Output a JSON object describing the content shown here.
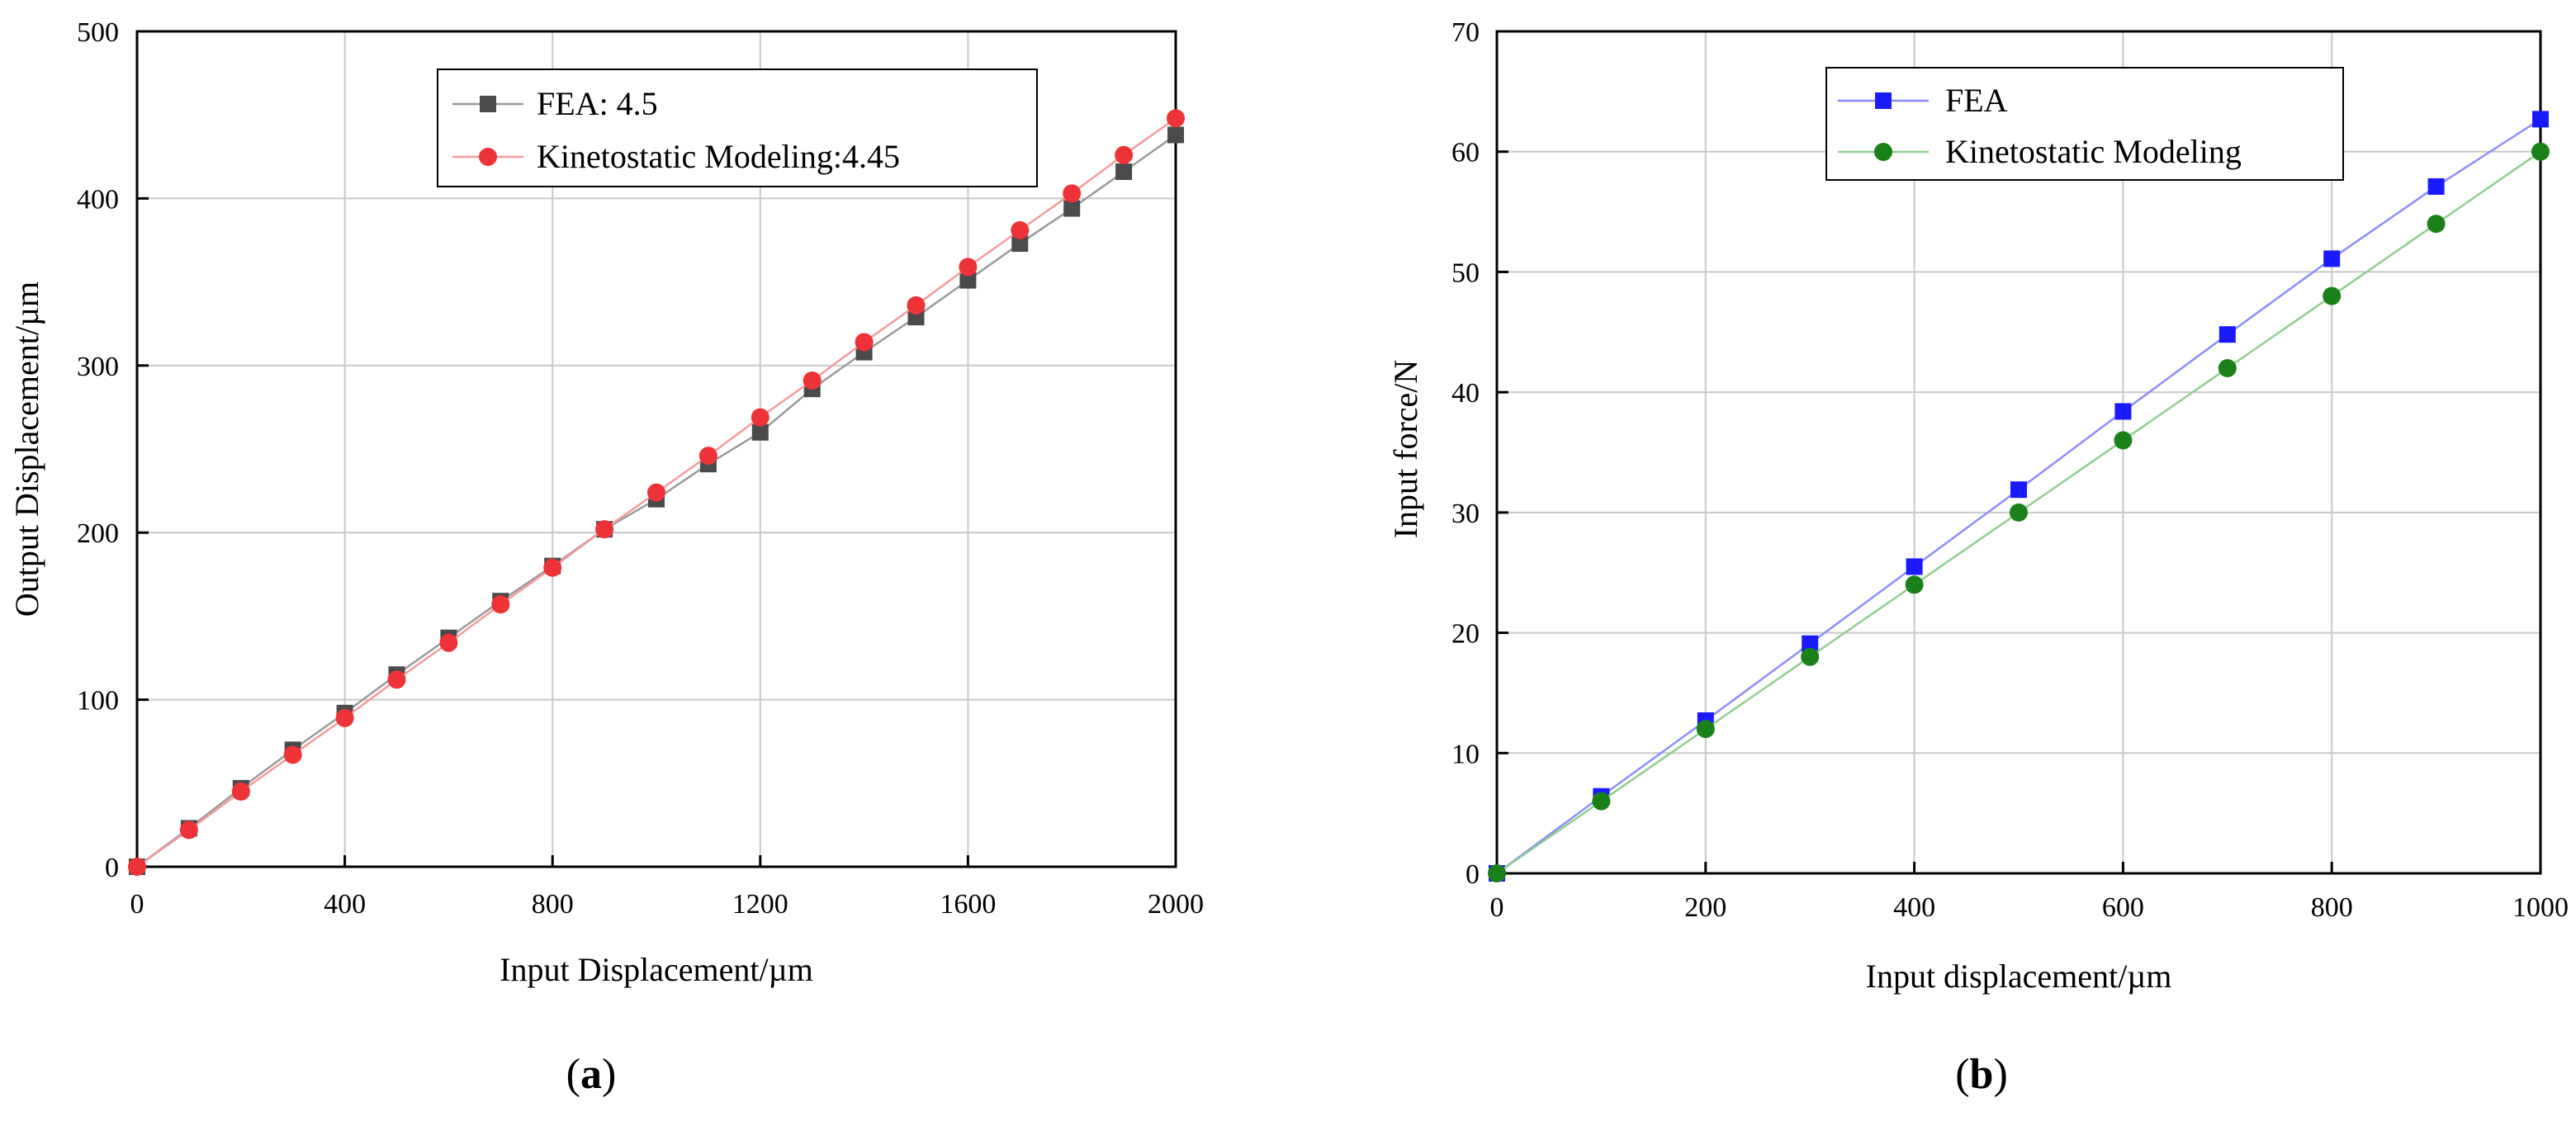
{
  "chart_data": [
    {
      "type": "line",
      "panel": "a",
      "caption_label": "a",
      "title": "",
      "xlabel": "Input Displacement/µm",
      "ylabel": "Output Displacement/µm",
      "xlim": [
        0,
        2000
      ],
      "ylim": [
        0,
        500
      ],
      "xticks": [
        0,
        400,
        800,
        1200,
        1600,
        2000
      ],
      "xtick_labels": [
        "0",
        "400",
        "800",
        "1200",
        "1600",
        "2000"
      ],
      "yticks": [
        0,
        100,
        200,
        300,
        400,
        500
      ],
      "ytick_labels": [
        "0",
        "100",
        "200",
        "300",
        "400",
        "500"
      ],
      "grid": true,
      "legend_position": "top-right",
      "series": [
        {
          "name": "FEA: 4.5",
          "marker": "square",
          "color": "#4a4a4a",
          "line_color": "#9a9a9a",
          "x": [
            0,
            100,
            200,
            300,
            400,
            500,
            600,
            700,
            800,
            900,
            1000,
            1100,
            1200,
            1300,
            1400,
            1500,
            1600,
            1700,
            1800,
            1900,
            2000
          ],
          "y": [
            0,
            23,
            47,
            70,
            92,
            115,
            137,
            159,
            180,
            202,
            220,
            241,
            260,
            286,
            308,
            329,
            351,
            373,
            394,
            416,
            438
          ]
        },
        {
          "name": "Kinetostatic Modeling:4.45",
          "marker": "circle",
          "color": "#ee3338",
          "line_color": "#f59a9c",
          "x": [
            0,
            100,
            200,
            300,
            400,
            500,
            600,
            700,
            800,
            900,
            1000,
            1100,
            1200,
            1300,
            1400,
            1500,
            1600,
            1700,
            1800,
            1900,
            2000
          ],
          "y": [
            0,
            22,
            45,
            67,
            89,
            112,
            134,
            157,
            179,
            202,
            224,
            246,
            269,
            291,
            314,
            336,
            359,
            381,
            403,
            426,
            448
          ]
        }
      ]
    },
    {
      "type": "line",
      "panel": "b",
      "caption_label": "b",
      "title": "",
      "xlabel": "Input displacement/µm",
      "ylabel": "Input force/N",
      "xlim": [
        0,
        1000
      ],
      "ylim": [
        0,
        70
      ],
      "xticks": [
        0,
        200,
        400,
        600,
        800,
        1000
      ],
      "xtick_labels": [
        "0",
        "200",
        "400",
        "600",
        "800",
        "1000"
      ],
      "yticks": [
        0,
        10,
        20,
        30,
        40,
        50,
        60,
        70
      ],
      "ytick_labels": [
        "0",
        "10",
        "20",
        "30",
        "40",
        "50",
        "60",
        "70"
      ],
      "grid": true,
      "legend_position": "top-left",
      "series": [
        {
          "name": "FEA",
          "marker": "square",
          "color": "#1a1aff",
          "line_color": "#8c8cff",
          "x": [
            0,
            100,
            200,
            300,
            400,
            500,
            600,
            700,
            800,
            900,
            1000
          ],
          "y": [
            0,
            6.4,
            12.7,
            19.1,
            25.5,
            31.9,
            38.4,
            44.8,
            51.1,
            57.1,
            62.7
          ]
        },
        {
          "name": "Kinetostatic Modeling",
          "marker": "circle",
          "color": "#1a801a",
          "line_color": "#8fcf8f",
          "x": [
            0,
            100,
            200,
            300,
            400,
            500,
            600,
            700,
            800,
            900,
            1000
          ],
          "y": [
            0,
            6,
            12,
            18,
            24,
            30,
            36,
            42,
            48,
            54,
            60
          ]
        }
      ]
    }
  ]
}
